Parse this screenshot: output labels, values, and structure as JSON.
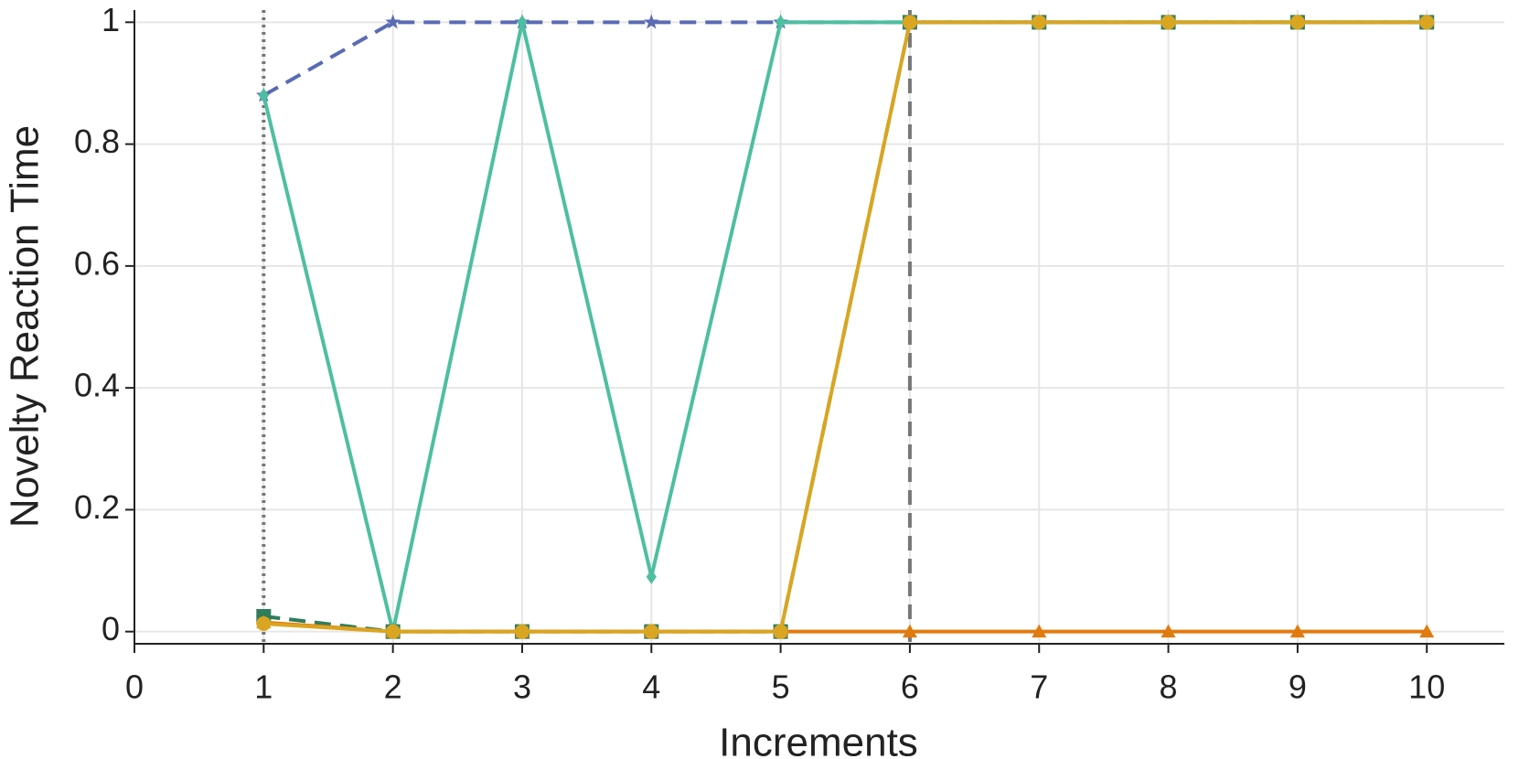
{
  "chart_data": {
    "type": "line",
    "x_label": "Increments",
    "y_label": "Novelty Reaction Time",
    "x": [
      1,
      2,
      3,
      4,
      5,
      6,
      7,
      8,
      9,
      10
    ],
    "series": [
      {
        "color": "#5a6bb5",
        "dash": "dashed",
        "marker": "star",
        "values": [
          0.88,
          1,
          1,
          1,
          1,
          1,
          1,
          1,
          1,
          1
        ]
      },
      {
        "color": "#4dbfa0",
        "dash": "solid",
        "marker": "diamond",
        "values": [
          0.88,
          0,
          1,
          0.09,
          1,
          1,
          1,
          1,
          1,
          1
        ]
      },
      {
        "color": "#2e7d5b",
        "dash": "dashed",
        "marker": "square",
        "values": [
          0.025,
          0,
          0,
          0,
          0,
          1,
          1,
          1,
          1,
          1
        ]
      },
      {
        "color": "#e07b10",
        "dash": "solid",
        "marker": "triangle",
        "values": [
          0.015,
          0,
          0,
          0,
          0,
          0,
          0,
          0,
          0,
          0
        ]
      },
      {
        "color": "#daa520",
        "dash": "solid",
        "marker": "circle",
        "values": [
          0.013,
          0,
          0,
          0,
          0,
          1,
          1,
          1,
          1,
          1
        ]
      }
    ],
    "vlines": [
      {
        "x": 1,
        "style": "dotted"
      },
      {
        "x": 6,
        "style": "dashed"
      }
    ],
    "xlim": [
      0,
      10.6
    ],
    "ylim": [
      -0.02,
      1.02
    ],
    "xticks": [
      0,
      1,
      2,
      3,
      4,
      5,
      6,
      7,
      8,
      9,
      10
    ],
    "yticks": [
      0,
      0.2,
      0.4,
      0.6,
      0.8,
      1
    ],
    "grid": true
  }
}
